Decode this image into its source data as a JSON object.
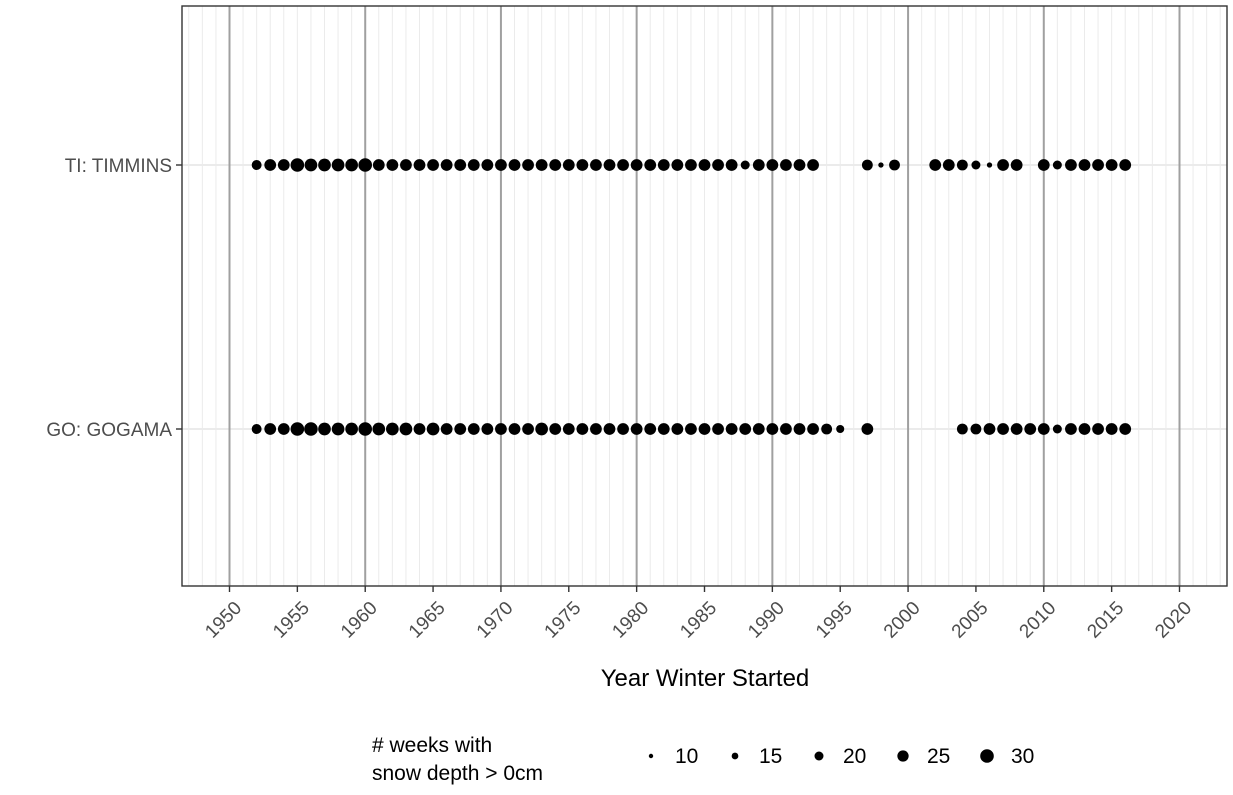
{
  "chart_data": {
    "type": "scatter",
    "title": "",
    "xlabel": "Year Winter Started",
    "ylabel": "",
    "xlim": [
      1946.5,
      2023.5
    ],
    "x_ticks": [
      1950,
      1955,
      1960,
      1965,
      1970,
      1975,
      1980,
      1985,
      1990,
      1995,
      2000,
      2005,
      2010,
      2015,
      2020
    ],
    "x_tick_labels": [
      "1950",
      "1955",
      "1960",
      "1965",
      "1970",
      "1975",
      "1980",
      "1985",
      "1990",
      "1995",
      "2000",
      "2005",
      "2010",
      "2015",
      "2020"
    ],
    "categories": [
      "TI: TIMMINS",
      "GO: GOGAMA"
    ],
    "size_legend": {
      "title_lines": [
        "# weeks with",
        "snow depth > 0cm"
      ],
      "values": [
        10,
        15,
        20,
        25,
        30
      ],
      "labels": [
        "10",
        "15",
        "20",
        "25",
        "30"
      ]
    },
    "grid": true,
    "legend_position": "bottom",
    "series": [
      {
        "category": "TI: TIMMINS",
        "points": [
          [
            1952,
            22
          ],
          [
            1953,
            26
          ],
          [
            1954,
            26
          ],
          [
            1955,
            30
          ],
          [
            1956,
            28
          ],
          [
            1957,
            28
          ],
          [
            1958,
            28
          ],
          [
            1959,
            28
          ],
          [
            1960,
            30
          ],
          [
            1961,
            26
          ],
          [
            1962,
            26
          ],
          [
            1963,
            26
          ],
          [
            1964,
            26
          ],
          [
            1965,
            26
          ],
          [
            1966,
            26
          ],
          [
            1967,
            26
          ],
          [
            1968,
            26
          ],
          [
            1969,
            26
          ],
          [
            1970,
            26
          ],
          [
            1971,
            26
          ],
          [
            1972,
            26
          ],
          [
            1973,
            26
          ],
          [
            1974,
            26
          ],
          [
            1975,
            26
          ],
          [
            1976,
            26
          ],
          [
            1977,
            26
          ],
          [
            1978,
            26
          ],
          [
            1979,
            26
          ],
          [
            1980,
            26
          ],
          [
            1981,
            26
          ],
          [
            1982,
            26
          ],
          [
            1983,
            26
          ],
          [
            1984,
            26
          ],
          [
            1985,
            26
          ],
          [
            1986,
            26
          ],
          [
            1987,
            26
          ],
          [
            1988,
            20
          ],
          [
            1989,
            26
          ],
          [
            1990,
            26
          ],
          [
            1991,
            26
          ],
          [
            1992,
            26
          ],
          [
            1993,
            26
          ],
          [
            1997,
            24
          ],
          [
            1998,
            12
          ],
          [
            1999,
            24
          ],
          [
            2002,
            26
          ],
          [
            2003,
            26
          ],
          [
            2004,
            24
          ],
          [
            2005,
            20
          ],
          [
            2006,
            12
          ],
          [
            2007,
            26
          ],
          [
            2008,
            26
          ],
          [
            2010,
            26
          ],
          [
            2011,
            20
          ],
          [
            2012,
            26
          ],
          [
            2013,
            26
          ],
          [
            2014,
            26
          ],
          [
            2015,
            26
          ],
          [
            2016,
            26
          ]
        ]
      },
      {
        "category": "GO: GOGAMA",
        "points": [
          [
            1952,
            22
          ],
          [
            1953,
            26
          ],
          [
            1954,
            26
          ],
          [
            1955,
            30
          ],
          [
            1956,
            30
          ],
          [
            1957,
            28
          ],
          [
            1958,
            28
          ],
          [
            1959,
            28
          ],
          [
            1960,
            30
          ],
          [
            1961,
            28
          ],
          [
            1962,
            28
          ],
          [
            1963,
            28
          ],
          [
            1964,
            26
          ],
          [
            1965,
            28
          ],
          [
            1966,
            26
          ],
          [
            1967,
            26
          ],
          [
            1968,
            26
          ],
          [
            1969,
            26
          ],
          [
            1970,
            26
          ],
          [
            1971,
            26
          ],
          [
            1972,
            26
          ],
          [
            1973,
            28
          ],
          [
            1974,
            26
          ],
          [
            1975,
            26
          ],
          [
            1976,
            26
          ],
          [
            1977,
            26
          ],
          [
            1978,
            26
          ],
          [
            1979,
            26
          ],
          [
            1980,
            26
          ],
          [
            1981,
            26
          ],
          [
            1982,
            26
          ],
          [
            1983,
            26
          ],
          [
            1984,
            26
          ],
          [
            1985,
            26
          ],
          [
            1986,
            26
          ],
          [
            1987,
            26
          ],
          [
            1988,
            26
          ],
          [
            1989,
            26
          ],
          [
            1990,
            26
          ],
          [
            1991,
            26
          ],
          [
            1992,
            26
          ],
          [
            1993,
            26
          ],
          [
            1994,
            24
          ],
          [
            1995,
            18
          ],
          [
            1997,
            26
          ],
          [
            2004,
            24
          ],
          [
            2005,
            24
          ],
          [
            2006,
            26
          ],
          [
            2007,
            26
          ],
          [
            2008,
            26
          ],
          [
            2009,
            26
          ],
          [
            2010,
            26
          ],
          [
            2011,
            20
          ],
          [
            2012,
            26
          ],
          [
            2013,
            26
          ],
          [
            2014,
            26
          ],
          [
            2015,
            26
          ],
          [
            2016,
            26
          ]
        ]
      }
    ]
  }
}
